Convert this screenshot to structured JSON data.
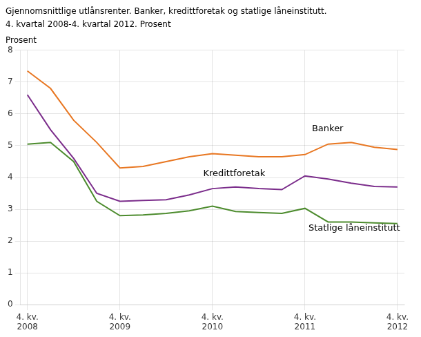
{
  "chart_data": {
    "type": "line",
    "title": "Gjennomsnittlige utlånsrenter. Banker, kredittforetak og statlige låneinstitutt.",
    "subtitle": "4. kvartal 2008-4. kvartal 2012. Prosent",
    "ylabel": "Prosent",
    "x": [
      0,
      1,
      2,
      3,
      4,
      5,
      6,
      7,
      8,
      9,
      10,
      11,
      12,
      13,
      14,
      15,
      16
    ],
    "xlim": [
      -0.3,
      16.3
    ],
    "xticks": [
      {
        "value": 0,
        "label": "4. kv.\n2008"
      },
      {
        "value": 4,
        "label": "4. kv.\n2009"
      },
      {
        "value": 8,
        "label": "4. kv.\n2010"
      },
      {
        "value": 12,
        "label": "4. kv.\n2011"
      },
      {
        "value": 16,
        "label": "4. kv.\n2012"
      }
    ],
    "ylim": [
      0,
      8
    ],
    "yticks": [
      0,
      1,
      2,
      3,
      4,
      5,
      6,
      7,
      8
    ],
    "grid": true,
    "series": [
      {
        "name": "Banker",
        "color": "#E87722",
        "values": [
          7.35,
          6.8,
          5.8,
          5.1,
          4.3,
          4.35,
          4.5,
          4.65,
          4.75,
          4.7,
          4.65,
          4.65,
          4.72,
          5.05,
          5.1,
          4.95,
          4.88
        ]
      },
      {
        "name": "Kredittforetak",
        "color": "#7B2D8B",
        "values": [
          6.6,
          5.5,
          4.6,
          3.5,
          3.25,
          3.28,
          3.3,
          3.45,
          3.65,
          3.7,
          3.65,
          3.62,
          4.05,
          3.95,
          3.82,
          3.72,
          3.7
        ]
      },
      {
        "name": "Statlige låneinstitutt",
        "color": "#4C8B2D",
        "values": [
          5.05,
          5.1,
          4.5,
          3.25,
          2.8,
          2.82,
          2.87,
          2.95,
          3.1,
          2.93,
          2.9,
          2.87,
          3.03,
          2.6,
          2.6,
          2.57,
          2.55
        ]
      }
    ],
    "annotations": [
      {
        "text": "Banker",
        "x": 12.3,
        "y": 5.38
      },
      {
        "text": "Kredittforetak",
        "x": 7.6,
        "y": 3.97
      },
      {
        "text": "Statlige låneinstitutt",
        "x": 12.15,
        "y": 2.25
      }
    ]
  }
}
